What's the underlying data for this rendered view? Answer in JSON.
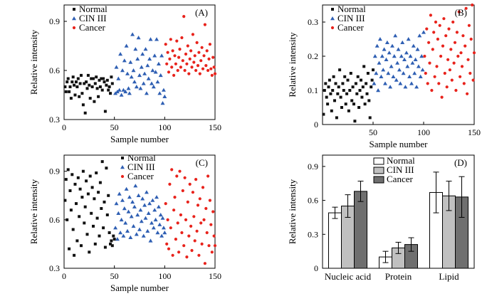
{
  "colors": {
    "normal": "#111111",
    "cin": "#2f5fb3",
    "cancer": "#e8231c",
    "bar_normal": "#ffffff",
    "bar_cin": "#c0c0c0",
    "bar_cancer": "#6f6f6f"
  },
  "chart_data": [
    {
      "type": "scatter",
      "panel_label": "(A)",
      "xlabel": "Sample number",
      "ylabel": "Relative intensity",
      "xlim": [
        0,
        150
      ],
      "ylim": [
        0.3,
        1.0
      ],
      "xticks": [
        0,
        50,
        100,
        150
      ],
      "xtick_labels": [
        "0",
        "50",
        "100",
        "150"
      ],
      "yticks": [
        0.3,
        0.6,
        0.9
      ],
      "ytick_labels": [
        "0.3",
        "0.6",
        "0.9"
      ],
      "legend_position": "top-left",
      "series": [
        {
          "name": "Normal",
          "marker": "square",
          "x_start": 1,
          "x_step": 1,
          "values": [
            0.5,
            0.47,
            0.53,
            0.55,
            0.47,
            0.5,
            0.43,
            0.53,
            0.56,
            0.51,
            0.45,
            0.53,
            0.5,
            0.55,
            0.44,
            0.52,
            0.57,
            0.46,
            0.39,
            0.52,
            0.34,
            0.53,
            0.49,
            0.57,
            0.51,
            0.43,
            0.55,
            0.5,
            0.55,
            0.41,
            0.52,
            0.56,
            0.49,
            0.44,
            0.54,
            0.5,
            0.55,
            0.48,
            0.55,
            0.53,
            0.35,
            0.51,
            0.54,
            0.48,
            0.5,
            0.46,
            0.56,
            0.52
          ]
        },
        {
          "name": "CIN III",
          "marker": "triangle",
          "x_start": 51,
          "x_step": 1,
          "values": [
            0.46,
            0.62,
            0.47,
            0.55,
            0.48,
            0.7,
            0.45,
            0.6,
            0.48,
            0.66,
            0.47,
            0.75,
            0.58,
            0.49,
            0.46,
            0.65,
            0.56,
            0.82,
            0.6,
            0.53,
            0.73,
            0.5,
            0.67,
            0.8,
            0.57,
            0.49,
            0.62,
            0.7,
            0.52,
            0.58,
            0.73,
            0.46,
            0.63,
            0.55,
            0.67,
            0.79,
            0.52,
            0.6,
            0.5,
            0.69,
            0.59,
            0.79,
            0.53,
            0.64,
            0.46,
            0.57,
            0.69,
            0.4,
            0.48,
            0.44
          ]
        },
        {
          "name": "Cancer",
          "marker": "circle",
          "x_start": 101,
          "x_step": 1,
          "values": [
            0.76,
            0.64,
            0.71,
            0.59,
            0.67,
            0.79,
            0.62,
            0.72,
            0.57,
            0.69,
            0.64,
            0.78,
            0.6,
            0.68,
            0.73,
            0.62,
            0.8,
            0.66,
            0.93,
            0.6,
            0.7,
            0.64,
            0.75,
            0.58,
            0.67,
            0.72,
            0.62,
            0.82,
            0.65,
            0.69,
            0.6,
            0.77,
            0.63,
            0.71,
            0.58,
            0.66,
            0.74,
            0.61,
            0.69,
            0.88,
            0.63,
            0.72,
            0.6,
            0.67,
            0.76,
            0.61,
            0.57,
            0.68,
            0.62,
            0.58
          ]
        }
      ]
    },
    {
      "type": "scatter",
      "panel_label": "(B)",
      "xlabel": "Sample number",
      "ylabel": "Relative intensity",
      "xlim": [
        0,
        150
      ],
      "ylim": [
        0,
        0.35
      ],
      "xticks": [
        50,
        100,
        150
      ],
      "xtick_labels": [
        "50",
        "100",
        "150"
      ],
      "yticks": [
        0,
        0.1,
        0.2,
        0.3
      ],
      "ytick_labels": [
        "0",
        "0.1",
        "0.2",
        "0.3"
      ],
      "legend_position": "top-left",
      "series": [
        {
          "name": "Normal",
          "marker": "square",
          "x_start": 1,
          "x_step": 1,
          "values": [
            0.03,
            0.1,
            0.12,
            0.08,
            0.06,
            0.11,
            0.13,
            0.09,
            0.04,
            0.1,
            0.14,
            0.07,
            0.12,
            0.02,
            0.09,
            0.11,
            0.16,
            0.08,
            0.05,
            0.12,
            0.1,
            0.14,
            0.06,
            0.09,
            0.13,
            0.04,
            0.1,
            0.15,
            0.07,
            0.11,
            0.06,
            0.01,
            0.12,
            0.09,
            0.14,
            0.05,
            0.1,
            0.13,
            0.08,
            0.11,
            0.17,
            0.06,
            0.12,
            0.09,
            0.15,
            0.07,
            0.02,
            0.11,
            0.13,
            0.16
          ]
        },
        {
          "name": "CIN III",
          "marker": "triangle",
          "x_start": 51,
          "x_step": 1,
          "values": [
            0.12,
            0.2,
            0.15,
            0.23,
            0.1,
            0.18,
            0.25,
            0.14,
            0.2,
            0.16,
            0.22,
            0.12,
            0.19,
            0.24,
            0.15,
            0.21,
            0.11,
            0.17,
            0.23,
            0.14,
            0.2,
            0.26,
            0.13,
            0.18,
            0.22,
            0.16,
            0.12,
            0.2,
            0.24,
            0.15,
            0.19,
            0.11,
            0.21,
            0.17,
            0.25,
            0.14,
            0.2,
            0.12,
            0.18,
            0.23,
            0.15,
            0.19,
            0.11,
            0.22,
            0.17,
            0.26,
            0.14,
            0.2,
            0.16,
            0.27
          ]
        },
        {
          "name": "Cancer",
          "marker": "circle",
          "x_start": 101,
          "x_step": 1,
          "values": [
            0.2,
            0.15,
            0.28,
            0.12,
            0.24,
            0.18,
            0.32,
            0.1,
            0.22,
            0.27,
            0.14,
            0.3,
            0.17,
            0.25,
            0.12,
            0.29,
            0.2,
            0.08,
            0.23,
            0.31,
            0.15,
            0.26,
            0.11,
            0.19,
            0.28,
            0.16,
            0.22,
            0.13,
            0.3,
            0.18,
            0.24,
            0.1,
            0.27,
            0.2,
            0.33,
            0.14,
            0.21,
            0.17,
            0.26,
            0.12,
            0.23,
            0.34,
            0.09,
            0.19,
            0.29,
            0.15,
            0.25,
            0.35,
            0.13,
            0.21
          ]
        }
      ]
    },
    {
      "type": "scatter",
      "panel_label": "(C)",
      "xlabel": "Sample number",
      "ylabel": "Relative intensity",
      "xlim": [
        0,
        150
      ],
      "ylim": [
        0.3,
        1.0
      ],
      "xticks": [
        0,
        50,
        100,
        150
      ],
      "xtick_labels": [
        "0",
        "50",
        "100",
        "150"
      ],
      "yticks": [
        0.3,
        0.6,
        0.9
      ],
      "ytick_labels": [
        "0.3",
        "0.6",
        "0.9"
      ],
      "legend_position": "top-center",
      "series": [
        {
          "name": "Normal",
          "marker": "square",
          "x_start": 1,
          "x_step": 1,
          "values": [
            0.72,
            0.85,
            0.6,
            0.91,
            0.42,
            0.78,
            0.66,
            0.88,
            0.54,
            0.38,
            0.82,
            0.7,
            0.47,
            0.86,
            0.62,
            0.79,
            0.44,
            0.74,
            0.9,
            0.58,
            0.68,
            0.84,
            0.51,
            0.76,
            0.4,
            0.87,
            0.64,
            0.8,
            0.56,
            0.73,
            0.45,
            0.89,
            0.61,
            0.77,
            0.5,
            0.83,
            0.67,
            0.96,
            0.55,
            0.71,
            0.43,
            0.92,
            0.63,
            0.75,
            0.52,
            0.45,
            0.47,
            0.44,
            0.5,
            0.48
          ]
        },
        {
          "name": "CIN III",
          "marker": "triangle",
          "x_start": 51,
          "x_step": 1,
          "values": [
            0.55,
            0.7,
            0.48,
            0.64,
            0.76,
            0.52,
            0.6,
            0.72,
            0.5,
            0.67,
            0.58,
            0.79,
            0.53,
            0.65,
            0.74,
            0.49,
            0.62,
            0.71,
            0.56,
            0.68,
            0.81,
            0.51,
            0.63,
            0.75,
            0.54,
            0.66,
            0.59,
            0.73,
            0.5,
            0.69,
            0.61,
            0.77,
            0.53,
            0.64,
            0.7,
            0.47,
            0.58,
            0.72,
            0.55,
            0.66,
            0.6,
            0.74,
            0.52,
            0.68,
            0.57,
            0.63,
            0.5,
            0.61,
            0.55,
            0.52
          ]
        },
        {
          "name": "Cancer",
          "marker": "circle",
          "x_start": 101,
          "x_step": 1,
          "values": [
            0.7,
            0.45,
            0.6,
            0.42,
            0.82,
            0.55,
            0.91,
            0.38,
            0.66,
            0.74,
            0.48,
            0.87,
            0.58,
            0.4,
            0.9,
            0.63,
            0.52,
            0.78,
            0.44,
            0.86,
            0.6,
            0.37,
            0.71,
            0.5,
            0.82,
            0.56,
            0.41,
            0.77,
            0.62,
            0.47,
            0.85,
            0.53,
            0.69,
            0.38,
            0.73,
            0.58,
            0.45,
            0.8,
            0.6,
            0.33,
            0.67,
            0.52,
            0.87,
            0.44,
            0.72,
            0.57,
            0.4,
            0.65,
            0.5,
            0.44
          ]
        }
      ]
    },
    {
      "type": "bar",
      "panel_label": "(D)",
      "xlabel": "",
      "ylabel": "Relative intensity",
      "ylim": [
        0,
        1.0
      ],
      "yticks": [
        0,
        0.3,
        0.6,
        0.9
      ],
      "ytick_labels": [
        "0",
        "0.3",
        "0.6",
        "0.9"
      ],
      "categories": [
        "Nucleic acid",
        "Protein",
        "Lipid"
      ],
      "legend_position": "top-center",
      "series": [
        {
          "name": "Normal",
          "values": [
            0.49,
            0.1,
            0.67
          ],
          "errors": [
            0.05,
            0.05,
            0.18
          ]
        },
        {
          "name": "CIN III",
          "values": [
            0.55,
            0.18,
            0.64
          ],
          "errors": [
            0.1,
            0.05,
            0.13
          ]
        },
        {
          "name": "Cancer",
          "values": [
            0.68,
            0.21,
            0.63
          ],
          "errors": [
            0.09,
            0.06,
            0.18
          ]
        }
      ]
    }
  ]
}
